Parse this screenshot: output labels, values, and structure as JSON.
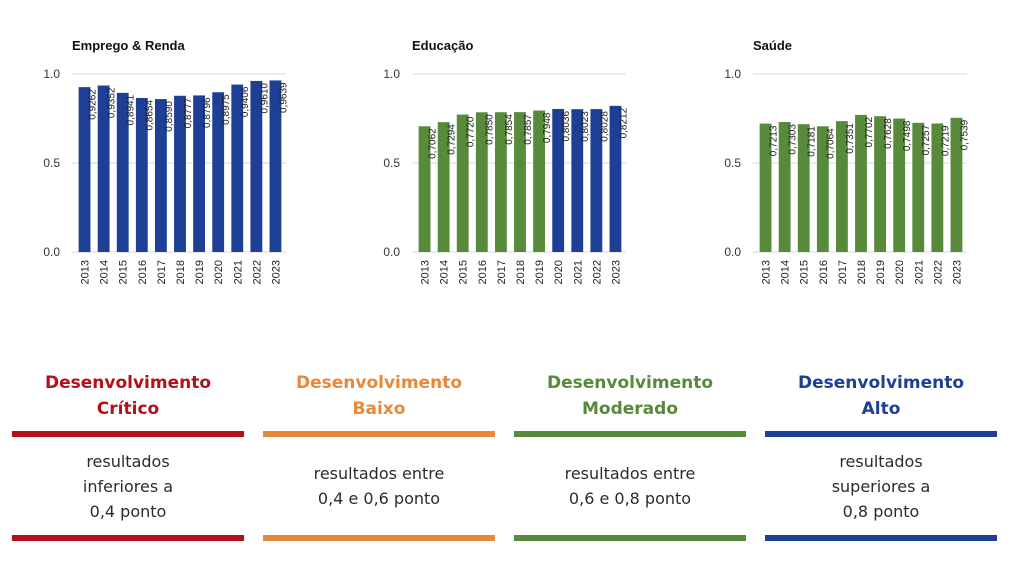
{
  "chart_data": [
    {
      "type": "bar",
      "title": "Emprego & Renda",
      "color": "#1d3f96",
      "categories": [
        "2013",
        "2014",
        "2015",
        "2016",
        "2017",
        "2018",
        "2019",
        "2020",
        "2021",
        "2022",
        "2023"
      ],
      "values": [
        0.9262,
        0.9352,
        0.8941,
        0.8654,
        0.859,
        0.8777,
        0.8796,
        0.8975,
        0.9406,
        0.961,
        0.9639
      ],
      "data_labels": [
        "0,9262",
        "0,9352",
        "0,8941",
        "0,8654",
        "0,8590",
        "0,8777",
        "0,8796",
        "0,8975",
        "0,9406",
        "0,9610",
        "0,9639"
      ],
      "yticks": [
        "0.0",
        "0.5",
        "1.0"
      ],
      "ylim": [
        0,
        1.0
      ],
      "grid": true
    },
    {
      "type": "bar",
      "title": "Educação",
      "color": "#2a3f9e",
      "categories": [
        "2013",
        "2014",
        "2015",
        "2016",
        "2017",
        "2018",
        "2019",
        "2020",
        "2021",
        "2022",
        "2023"
      ],
      "values": [
        0.7062,
        0.7294,
        0.772,
        0.785,
        0.7854,
        0.7857,
        0.7948,
        0.8036,
        0.8023,
        0.8028,
        0.8212
      ],
      "data_labels": [
        "0,7062",
        "0,7294",
        "0,7720",
        "0,7850",
        "0,7854",
        "0,7857",
        "0,7948",
        "0,8036",
        "0,8023",
        "0,8028",
        "0,8212"
      ],
      "bar_colors": [
        "#578a3b",
        "#578a3b",
        "#578a3b",
        "#578a3b",
        "#578a3b",
        "#578a3b",
        "#578a3b",
        "#1d3f96",
        "#1d3f96",
        "#1d3f96",
        "#1d3f96"
      ],
      "yticks": [
        "0.0",
        "0.5",
        "1.0"
      ],
      "ylim": [
        0,
        1.0
      ],
      "grid": true
    },
    {
      "type": "bar",
      "title": "Saúde",
      "color": "#578a3b",
      "categories": [
        "2013",
        "2014",
        "2015",
        "2016",
        "2017",
        "2018",
        "2019",
        "2020",
        "2021",
        "2022",
        "2023"
      ],
      "values": [
        0.7213,
        0.7303,
        0.7181,
        0.7064,
        0.7351,
        0.7702,
        0.7628,
        0.7498,
        0.7257,
        0.7219,
        0.7539
      ],
      "data_labels": [
        "0,7213",
        "0,7303",
        "0,7181",
        "0,7064",
        "0,7351",
        "0,7702",
        "0,7628",
        "0,7498",
        "0,7257",
        "0,7219",
        "0,7539"
      ],
      "yticks": [
        "0.0",
        "0.5",
        "1.0"
      ],
      "ylim": [
        0,
        1.0
      ],
      "grid": true
    }
  ],
  "legend": [
    {
      "title_lines": [
        "Desenvolvimento",
        "Crítico"
      ],
      "desc_lines": [
        "resultados",
        "inferiores a",
        "0,4 ponto"
      ],
      "color": "#b3111a"
    },
    {
      "title_lines": [
        "Desenvolvimento",
        "Baixo"
      ],
      "desc_lines": [
        "resultados entre",
        "0,4 e 0,6 ponto"
      ],
      "color": "#e8893a"
    },
    {
      "title_lines": [
        "Desenvolvimento",
        "Moderado"
      ],
      "desc_lines": [
        "resultados entre",
        "0,6 e 0,8 ponto"
      ],
      "color": "#578a3b"
    },
    {
      "title_lines": [
        "Desenvolvimento",
        "Alto"
      ],
      "desc_lines": [
        "resultados",
        "superiores a",
        "0,8 ponto"
      ],
      "color": "#1d3f96"
    }
  ]
}
